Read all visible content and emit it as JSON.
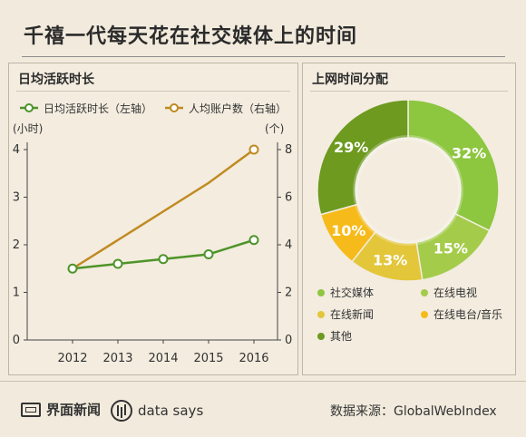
{
  "page": {
    "title": "千禧一代每天花在社交媒体上的时间"
  },
  "left_panel": {
    "title": "日均活跃时长",
    "legend": [
      {
        "label": "日均活跃时长（左轴）",
        "color": "#4e9428"
      },
      {
        "label": "人均账户数（右轴）",
        "color": "#c08a21"
      }
    ],
    "left_axis_unit": "(小时)",
    "right_axis_unit": "(个)"
  },
  "right_panel": {
    "title": "上网时间分配",
    "legend": [
      {
        "label": "社交媒体",
        "color": "#8dc63f"
      },
      {
        "label": "在线电视",
        "color": "#a4cc4a"
      },
      {
        "label": "在线新闻",
        "color": "#e3c63a"
      },
      {
        "label": "在线电台/音乐",
        "color": "#f6bb1b"
      },
      {
        "label": "其他",
        "color": "#6d9a1f"
      }
    ]
  },
  "chart_data": [
    {
      "type": "line",
      "title": "日均活跃时长",
      "x": [
        "2012",
        "2013",
        "2014",
        "2015",
        "2016"
      ],
      "series": [
        {
          "name": "日均活跃时长（左轴）",
          "axis": "left",
          "values": [
            1.5,
            1.6,
            1.7,
            1.8,
            2.1
          ],
          "color": "#4e9428"
        },
        {
          "name": "人均账户数（右轴）",
          "axis": "right",
          "values": [
            3,
            4.2,
            5.4,
            6.6,
            8
          ],
          "color": "#c08a21"
        }
      ],
      "ylim_left": [
        0,
        4
      ],
      "ylim_right": [
        0,
        8
      ],
      "y_left_ticks": [
        "0",
        "1",
        "2",
        "3",
        "4"
      ],
      "y_right_ticks": [
        "0",
        "2",
        "4",
        "6",
        "8"
      ],
      "ylabel_left": "(小时)",
      "ylabel_right": "(个)",
      "grid": false,
      "legend_position": "top"
    },
    {
      "type": "pie",
      "title": "上网时间分配",
      "donut": true,
      "slices": [
        {
          "name": "社交媒体",
          "value": 32,
          "label": "32%",
          "color": "#8dc63f"
        },
        {
          "name": "在线电视",
          "value": 15,
          "label": "15%",
          "color": "#a4cc4a"
        },
        {
          "name": "在线新闻",
          "value": 13,
          "label": "13%",
          "color": "#e3c63a"
        },
        {
          "name": "在线电台/音乐",
          "value": 10,
          "label": "10%",
          "color": "#f6bb1b"
        },
        {
          "name": "其他",
          "value": 29,
          "label": "29%",
          "color": "#6d9a1f"
        }
      ],
      "legend_position": "bottom"
    }
  ],
  "footer": {
    "brand": "界面新闻",
    "datasays": "data says",
    "source": "数据来源：GlobalWebIndex"
  }
}
